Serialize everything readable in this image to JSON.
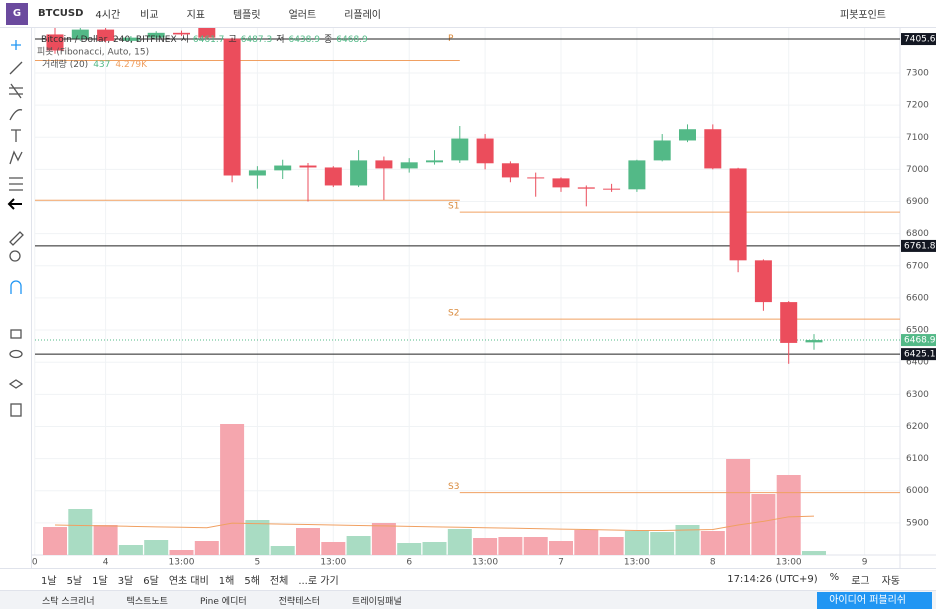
{
  "toolbar": {
    "symbol": "BTCUSD",
    "interval": "4시간",
    "items": [
      "비교",
      "지표",
      "템플릿",
      "얼러트",
      "리플레이"
    ],
    "pivot": "피봇포인트"
  },
  "legend": {
    "title": "Bitcoin / Dollar, 240, BITFINEX",
    "ohlc_names": [
      "시",
      "고",
      "저",
      "종"
    ],
    "pivot": "피봇 (Fibonacci, Auto, 15)",
    "volume": "거래량 (20)",
    "volume_ma": "4.279K"
  },
  "chart_data": {
    "type": "candlestick",
    "open": [
      7420,
      7407,
      7435,
      7400,
      7410,
      7425,
      7440,
      7407,
      6981,
      6997,
      7012,
      7006,
      6950,
      7028,
      7003,
      7022,
      7028,
      7096,
      7019,
      6975,
      6972,
      6944,
      6940,
      6938,
      7028,
      7090,
      7125,
      7003,
      6717,
      6587,
      6461.7
    ],
    "high": [
      7440,
      7440,
      7440,
      7415,
      7430,
      7432,
      7440,
      7410,
      7010,
      7030,
      7020,
      7010,
      7060,
      7040,
      7035,
      7060,
      7135,
      7110,
      7025,
      6990,
      6975,
      6950,
      6955,
      7030,
      7110,
      7140,
      7140,
      7005,
      6720,
      6590,
      6487.3
    ],
    "low": [
      7360,
      7400,
      7395,
      7395,
      7405,
      7415,
      7405,
      6960,
      6940,
      6970,
      6900,
      6945,
      6945,
      6905,
      6990,
      7015,
      7020,
      7000,
      6960,
      6915,
      6930,
      6885,
      6930,
      6930,
      7025,
      7085,
      7000,
      6680,
      6560,
      6395,
      6438.9
    ],
    "close": [
      7370,
      7435,
      7400,
      7410,
      7425,
      7420,
      7410,
      6981,
      6997,
      7012,
      7006,
      6950,
      7028,
      7003,
      7022,
      7028,
      7096,
      7019,
      6975,
      6972,
      6944,
      6940,
      6938,
      7028,
      7090,
      7125,
      7003,
      6717,
      6587,
      6460,
      6468.9
    ],
    "volume": [
      3080,
      5060,
      3300,
      1100,
      1650,
      550,
      1540,
      14410,
      3850,
      990,
      2970,
      1430,
      2090,
      3520,
      1320,
      1430,
      2860,
      1870,
      1980,
      1980,
      1540,
      2750,
      1980,
      2640,
      2530,
      3300,
      2640,
      10560,
      6710,
      8800,
      437
    ],
    "volume_ma": [
      3300,
      3250,
      3200,
      3150,
      3100,
      3050,
      3000,
      3500,
      3450,
      3400,
      3350,
      3300,
      3250,
      3200,
      3150,
      3100,
      3050,
      3000,
      2950,
      2900,
      2850,
      2800,
      2750,
      2700,
      2700,
      2750,
      2800,
      3300,
      3700,
      4200,
      4279
    ],
    "up_color": "#53b987",
    "down_color": "#eb4d5c",
    "up_volume_color": "#a9dcc3",
    "down_volume_color": "#f5a6ae",
    "ylim": [
      5800,
      7440
    ],
    "yticks": [
      5900,
      6000,
      6100,
      6200,
      6300,
      6400,
      6500,
      6600,
      6700,
      6800,
      6900,
      7000,
      7100,
      7200,
      7300
    ],
    "xticks": [
      {
        "value": -0.8,
        "label": "0"
      },
      {
        "value": 2,
        "label": "4"
      },
      {
        "value": 5,
        "label": "13:00"
      },
      {
        "value": 8,
        "label": "5"
      },
      {
        "value": 11,
        "label": "13:00"
      },
      {
        "value": 14,
        "label": "6"
      },
      {
        "value": 17,
        "label": "13:00"
      },
      {
        "value": 20,
        "label": "7"
      },
      {
        "value": 23,
        "label": "13:00"
      },
      {
        "value": 26,
        "label": "8"
      },
      {
        "value": 29,
        "label": "13:00"
      },
      {
        "value": 32,
        "label": "9"
      }
    ],
    "horizontal_lines": [
      {
        "value": 7405.6,
        "label": "7405.6"
      },
      {
        "value": 6761.8,
        "label": "6761.8"
      },
      {
        "value": 6425.1,
        "label": "6425.1"
      }
    ],
    "last_price_label": "6468.9",
    "pivot_segments": [
      {
        "labels": [
          "P",
          null
        ],
        "values": [
          7339,
          6904
        ]
      },
      {
        "labels": [
          "S1",
          "S2",
          "S3"
        ],
        "values": [
          6867,
          6534,
          5994
        ]
      }
    ],
    "pivot_color": "#f0a062",
    "grid": true
  },
  "bottom": {
    "ranges": [
      "1날",
      "5날",
      "1달",
      "3달",
      "6달",
      "연초 대비",
      "1해",
      "5해",
      "전체",
      "...로 가기"
    ],
    "time": "17:14:26 (UTC+9)",
    "scale": [
      "%",
      "로그",
      "자동"
    ]
  },
  "tabs": [
    "스탁 스크리너",
    "텍스트노트",
    "Pine 에디터",
    "전략테스터",
    "트레이딩패널"
  ],
  "publish": "아이디어 퍼블리쉬"
}
